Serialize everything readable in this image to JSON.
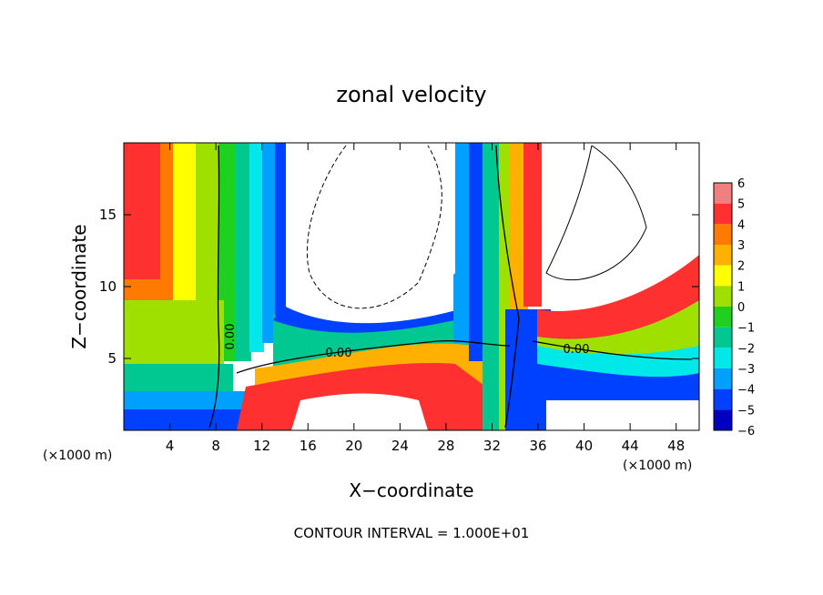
{
  "chart_data": {
    "type": "heatmap",
    "title": "zonal velocity",
    "xlabel": "X−coordinate",
    "ylabel": "Z−coordinate",
    "x_unit_left": "(×1000 m)",
    "x_unit_right": "(×1000 m)",
    "footer": "CONTOUR INTERVAL = 1.000E+01",
    "xlim": [
      0,
      50
    ],
    "ylim": [
      0,
      20
    ],
    "x_ticks": [
      "4",
      "8",
      "12",
      "16",
      "20",
      "24",
      "28",
      "32",
      "36",
      "40",
      "44",
      "48"
    ],
    "y_ticks": [
      "5",
      "10",
      "15"
    ],
    "colorbar": {
      "levels": [
        "6",
        "5",
        "4",
        "3",
        "2",
        "1",
        "0",
        "−1",
        "−2",
        "−3",
        "−4",
        "−5",
        "−6"
      ],
      "colors": [
        "#f08080",
        "#ff3030",
        "#ff7a00",
        "#ffb000",
        "#ffff00",
        "#a0e000",
        "#20d020",
        "#00c890",
        "#00e8e8",
        "#00a0ff",
        "#0040ff",
        "#0000c0",
        "#7000b0"
      ]
    },
    "contour_labels": [
      "0.00",
      "0.00",
      "0.00"
    ]
  }
}
